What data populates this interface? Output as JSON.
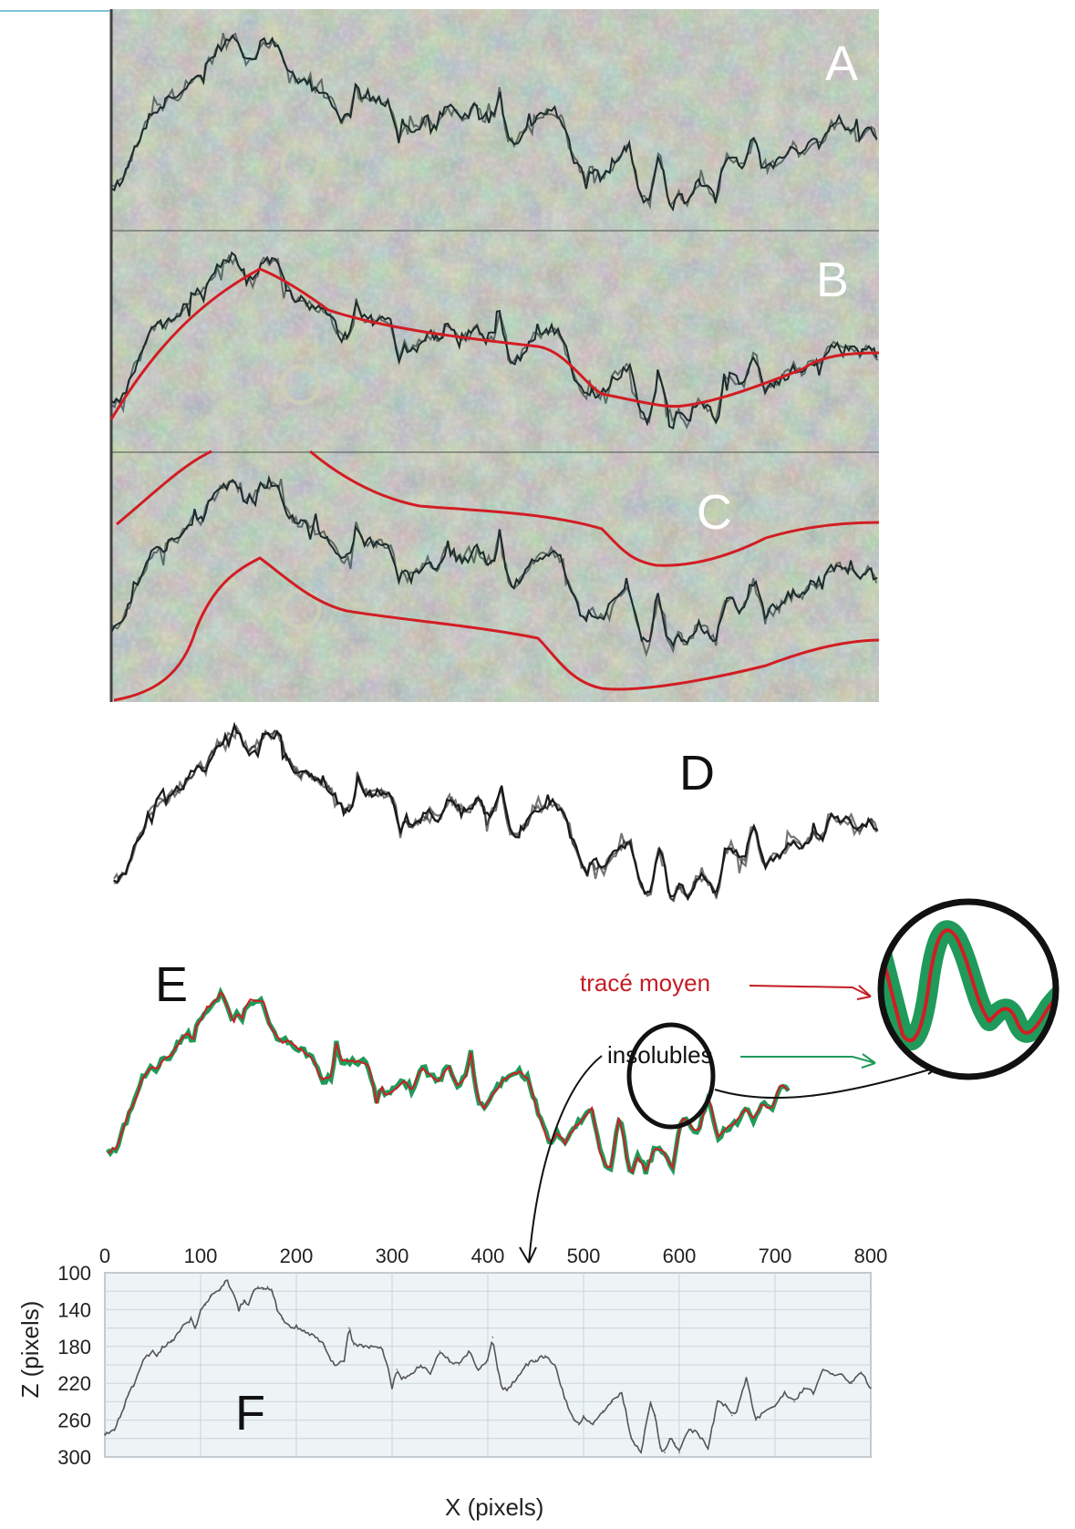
{
  "panel_labels": {
    "a": "A",
    "b": "B",
    "c": "C",
    "d": "D",
    "e": "E",
    "f": "F"
  },
  "annotations": {
    "mean_trace": "tracé moyen",
    "insolubles": "insolubles"
  },
  "colors": {
    "rock_base": "#7f8a7e",
    "profile_ink": "#1d2b2b",
    "mean_trace": "#d21d24",
    "insolubles": "#1f9a5a",
    "grid": "#c8d6dc",
    "plot_bg": "#eef3f6"
  },
  "chart_data": {
    "type": "line",
    "title": "",
    "xlabel": "X (pixels)",
    "ylabel": "Z (pixels)",
    "xlim": [
      0,
      800
    ],
    "ylim": [
      300,
      100
    ],
    "y_inverted": true,
    "x_ticks": [
      "0",
      "100",
      "200",
      "300",
      "400",
      "500",
      "600",
      "700",
      "800"
    ],
    "y_ticks": [
      "100",
      "140",
      "180",
      "220",
      "260",
      "300"
    ],
    "grid": true,
    "series": [
      {
        "x": [
          0,
          10,
          20,
          25,
          30,
          40,
          50,
          55,
          60,
          70,
          80,
          90,
          95,
          100,
          105,
          110,
          120,
          125,
          128,
          130,
          135,
          140,
          145,
          150,
          155,
          160,
          165,
          170,
          175,
          180,
          185,
          190,
          195,
          200,
          210,
          220,
          230,
          235,
          240,
          250,
          255,
          260,
          270,
          280,
          290,
          295,
          300,
          305,
          310,
          320,
          330,
          340,
          350,
          360,
          370,
          380,
          390,
          400,
          405,
          410,
          415,
          420,
          430,
          440,
          450,
          460,
          470,
          480,
          490,
          495,
          500,
          510,
          520,
          530,
          540,
          550,
          560,
          570,
          575,
          580,
          585,
          590,
          595,
          600,
          610,
          620,
          630,
          640,
          650,
          655,
          660,
          670,
          680,
          690,
          700,
          710,
          720,
          730,
          740,
          750,
          760,
          770,
          780,
          790,
          800
        ],
        "y": [
          275,
          270,
          245,
          230,
          222,
          195,
          185,
          190,
          180,
          175,
          160,
          150,
          160,
          140,
          135,
          125,
          118,
          110,
          108,
          115,
          125,
          140,
          130,
          135,
          120,
          115,
          118,
          115,
          120,
          140,
          150,
          155,
          160,
          158,
          165,
          170,
          180,
          192,
          200,
          195,
          160,
          178,
          180,
          180,
          183,
          200,
          225,
          205,
          215,
          210,
          200,
          210,
          185,
          195,
          200,
          185,
          205,
          195,
          170,
          205,
          225,
          228,
          215,
          200,
          195,
          190,
          200,
          235,
          260,
          265,
          255,
          265,
          250,
          240,
          230,
          280,
          295,
          240,
          255,
          290,
          295,
          280,
          285,
          295,
          270,
          275,
          290,
          240,
          245,
          255,
          250,
          215,
          260,
          250,
          245,
          230,
          240,
          225,
          230,
          205,
          210,
          210,
          220,
          208,
          225
        ]
      }
    ]
  }
}
